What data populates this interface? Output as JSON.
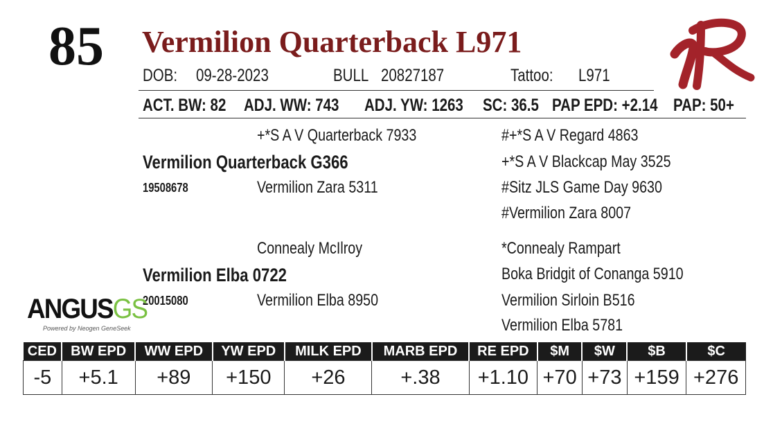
{
  "lot": "85",
  "name": "Vermilion Quarterback L971",
  "info": {
    "dob_label": "DOB:",
    "dob": "09-28-2023",
    "sex": "BULL",
    "reg_no": "20827187",
    "tattoo_label": "Tattoo:",
    "tattoo": "L971"
  },
  "perf": {
    "bw": "ACT. BW: 82",
    "ww": "ADJ. WW: 743",
    "yw": "ADJ. YW: 1263",
    "sc": "SC: 36.5",
    "pap_epd": "PAP EPD: +2.14",
    "pap": "PAP: 50+"
  },
  "pedigree": {
    "sire": {
      "name": "Vermilion Quarterback G366",
      "reg": "19508678"
    },
    "sire_sire": "+*S A V Quarterback 7933",
    "sire_dam": "Vermilion Zara 5311",
    "ss_sire": "#+*S A V Regard 4863",
    "ss_dam": "+*S A V Blackcap May 3525",
    "sd_sire": "#Sitz JLS Game Day 9630",
    "sd_dam": "#Vermilion Zara 8007",
    "dam": {
      "name": "Vermilion Elba 0722",
      "reg": "20015080"
    },
    "dam_sire": "Connealy McIlroy",
    "dam_dam": "Vermilion Elba 8950",
    "ds_sire": "*Connealy Rampart",
    "ds_dam": "Boka Bridgit of Conanga 5910",
    "dd_sire": "Vermilion Sirloin B516",
    "dd_dam": "Vermilion Elba 5781"
  },
  "logo": {
    "angus_text": "ANGUS",
    "gs_text": "GS",
    "tagline": "Powered by Neogen GeneSeek"
  },
  "epd_headers": [
    "CED",
    "BW EPD",
    "WW EPD",
    "YW EPD",
    "MILK EPD",
    "MARB EPD",
    "RE EPD",
    "$M",
    "$W",
    "$B",
    "$C"
  ],
  "epd_values": [
    "-5",
    "+5.1",
    "+89",
    "+150",
    "+26",
    "+.38",
    "+1.10",
    "+70",
    "+73",
    "+159",
    "+276"
  ],
  "colors": {
    "name": "#7a1c1c",
    "brand_mark": "#a3232a",
    "header_bg": "#1b1b1b",
    "gs_green": "#7ac142"
  },
  "icons": {
    "brand": "vr-brand-logo-icon",
    "angus": "angus-gs-logo-icon"
  }
}
